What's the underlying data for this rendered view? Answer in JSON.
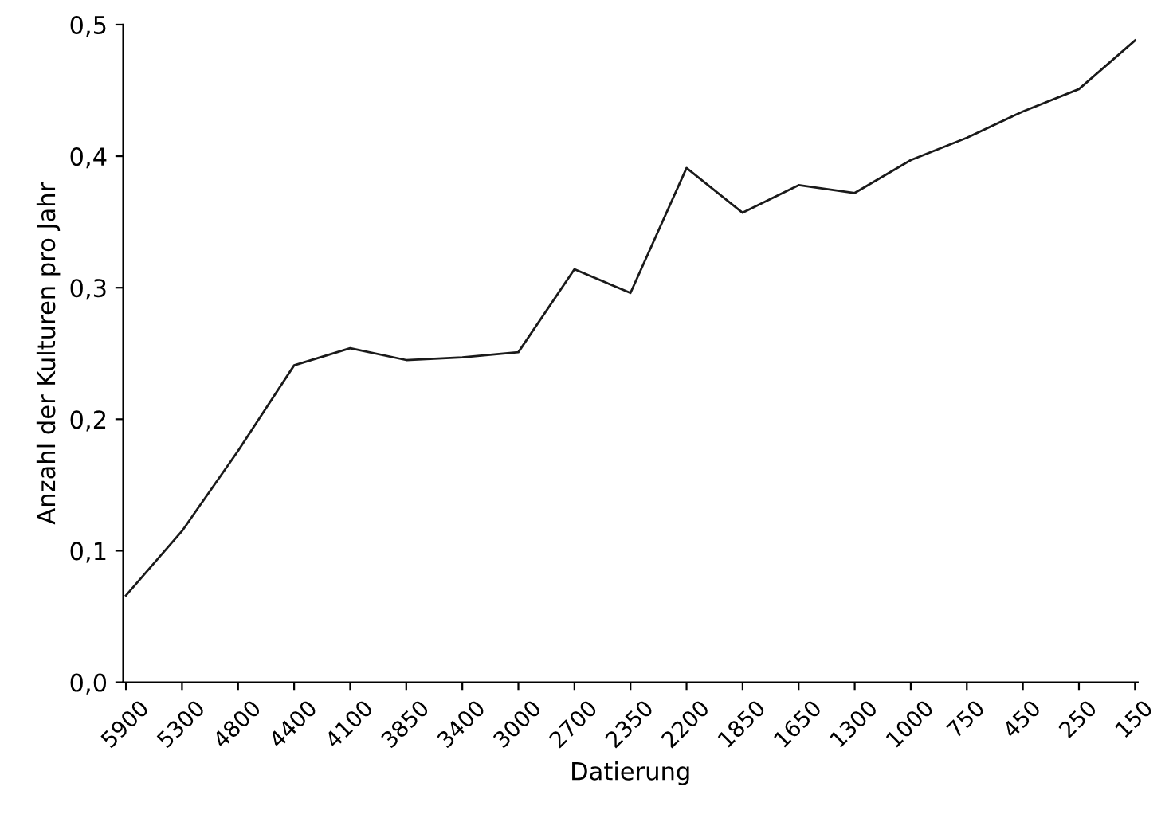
{
  "chart_data": {
    "type": "line",
    "xlabel": "Datierung",
    "ylabel": "Anzahl der Kulturen pro Jahr",
    "categories": [
      "5900",
      "5300",
      "4800",
      "4400",
      "4100",
      "3850",
      "3400",
      "3000",
      "2700",
      "2350",
      "2200",
      "1850",
      "1650",
      "1300",
      "1000",
      "750",
      "450",
      "250",
      "150"
    ],
    "series": [
      {
        "color": "#1a1a1a",
        "values": [
          0.066,
          0.115,
          0.176,
          0.241,
          0.254,
          0.245,
          0.247,
          0.251,
          0.314,
          0.296,
          0.391,
          0.357,
          0.378,
          0.372,
          0.397,
          0.414,
          0.434,
          0.451,
          0.488
        ]
      }
    ],
    "ylim": [
      0,
      0.5
    ],
    "yticks": [
      {
        "value": 0,
        "label": "0,0"
      },
      {
        "value": 0.1,
        "label": "0,1"
      },
      {
        "value": 0.2,
        "label": "0,2"
      },
      {
        "value": 0.3,
        "label": "0,3"
      },
      {
        "value": 0.4,
        "label": "0,4"
      },
      {
        "value": 0.5,
        "label": "0,5"
      }
    ],
    "grid": false,
    "legend": false,
    "marker": "none",
    "line_style": "solid"
  }
}
